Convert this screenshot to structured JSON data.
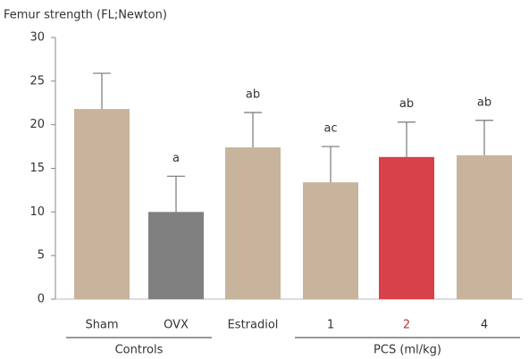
{
  "chart_data": {
    "type": "bar",
    "ylabel": "Femur strength (FL;Newton)",
    "categories": [
      "Sham",
      "OVX",
      "Estradiol",
      "1",
      "2",
      "4"
    ],
    "values": [
      21.8,
      10.0,
      17.4,
      13.4,
      16.3,
      16.5
    ],
    "errors": [
      4.1,
      4.1,
      4.0,
      4.1,
      4.0,
      4.0
    ],
    "annotations": [
      null,
      "a",
      "ab",
      "ac",
      "ab",
      "ab"
    ],
    "colors": [
      "#c8b49c",
      "#808080",
      "#c8b49c",
      "#c8b49c",
      "#d8404a",
      "#c8b49c"
    ],
    "label_colors": [
      "#333333",
      "#333333",
      "#333333",
      "#333333",
      "#c0303a",
      "#333333"
    ],
    "groups": [
      {
        "name": "Controls",
        "start": 0,
        "end": 1
      },
      {
        "name": "PCS (ml/kg)",
        "start": 3,
        "end": 5
      }
    ],
    "ylim": [
      0,
      30
    ],
    "yticks": [
      0,
      5,
      10,
      15,
      20,
      25,
      30
    ],
    "grid": false
  }
}
